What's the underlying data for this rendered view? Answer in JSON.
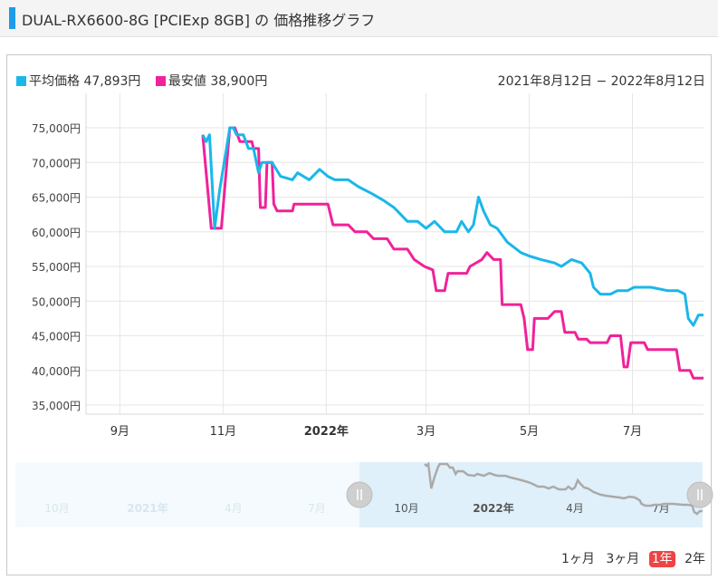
{
  "header": {
    "title": "DUAL-RX6600-8G [PCIExp 8GB] の 価格推移グラフ"
  },
  "legend": {
    "avg_label": "平均価格 47,893円",
    "min_label": "最安値 38,900円"
  },
  "date_range": "2021年8月12日 − 2022年8月12日",
  "range_buttons": [
    "1ヶ月",
    "3ヶ月",
    "1年",
    "2年"
  ],
  "active_range": "1年",
  "colors": {
    "avg": "#1ab7ea",
    "min": "#f0229a",
    "navigator": "#aaaaaa",
    "nav_bg": "#dff0fa"
  },
  "chart_data": {
    "type": "line",
    "ylim": [
      35000,
      75000
    ],
    "y_ticks": [
      35000,
      40000,
      45000,
      50000,
      55000,
      60000,
      65000,
      70000,
      75000
    ],
    "y_tick_labels": [
      "35,000円",
      "40,000円",
      "45,000円",
      "50,000円",
      "55,000円",
      "60,000円",
      "65,000円",
      "70,000円",
      "75,000円"
    ],
    "x_range": [
      "2021-08-12",
      "2022-08-12"
    ],
    "x_ticks": [
      {
        "date": "2021-09-01",
        "label": "9月"
      },
      {
        "date": "2021-11-01",
        "label": "11月"
      },
      {
        "date": "2022-01-01",
        "label": "2022年"
      },
      {
        "date": "2022-03-01",
        "label": "3月"
      },
      {
        "date": "2022-05-01",
        "label": "5月"
      },
      {
        "date": "2022-07-01",
        "label": "7月"
      }
    ],
    "series": [
      {
        "name": "平均価格",
        "key": "avg",
        "points": [
          [
            "2021-10-20",
            74000
          ],
          [
            "2021-10-22",
            73000
          ],
          [
            "2021-10-24",
            74000
          ],
          [
            "2021-10-27",
            60500
          ],
          [
            "2021-10-30",
            66000
          ],
          [
            "2021-11-03",
            72000
          ],
          [
            "2021-11-05",
            75000
          ],
          [
            "2021-11-07",
            75000
          ],
          [
            "2021-11-09",
            74000
          ],
          [
            "2021-11-13",
            74000
          ],
          [
            "2021-11-16",
            72000
          ],
          [
            "2021-11-19",
            72000
          ],
          [
            "2021-11-22",
            68500
          ],
          [
            "2021-11-24",
            70000
          ],
          [
            "2021-11-30",
            70000
          ],
          [
            "2021-12-05",
            68000
          ],
          [
            "2021-12-12",
            67500
          ],
          [
            "2021-12-15",
            68500
          ],
          [
            "2021-12-22",
            67500
          ],
          [
            "2021-12-28",
            69000
          ],
          [
            "2022-01-02",
            68000
          ],
          [
            "2022-01-06",
            67500
          ],
          [
            "2022-01-14",
            67500
          ],
          [
            "2022-01-20",
            66500
          ],
          [
            "2022-01-28",
            65500
          ],
          [
            "2022-02-04",
            64500
          ],
          [
            "2022-02-10",
            63500
          ],
          [
            "2022-02-14",
            62500
          ],
          [
            "2022-02-18",
            61500
          ],
          [
            "2022-02-24",
            61500
          ],
          [
            "2022-03-01",
            60500
          ],
          [
            "2022-03-06",
            61500
          ],
          [
            "2022-03-12",
            60000
          ],
          [
            "2022-03-19",
            60000
          ],
          [
            "2022-03-22",
            61500
          ],
          [
            "2022-03-26",
            60000
          ],
          [
            "2022-03-29",
            61000
          ],
          [
            "2022-04-01",
            65000
          ],
          [
            "2022-04-04",
            63000
          ],
          [
            "2022-04-08",
            61000
          ],
          [
            "2022-04-12",
            60500
          ],
          [
            "2022-04-18",
            58500
          ],
          [
            "2022-04-26",
            57000
          ],
          [
            "2022-05-01",
            56500
          ],
          [
            "2022-05-08",
            56000
          ],
          [
            "2022-05-16",
            55500
          ],
          [
            "2022-05-20",
            55000
          ],
          [
            "2022-05-26",
            56000
          ],
          [
            "2022-06-01",
            55500
          ],
          [
            "2022-06-06",
            54000
          ],
          [
            "2022-06-08",
            52000
          ],
          [
            "2022-06-12",
            51000
          ],
          [
            "2022-06-18",
            51000
          ],
          [
            "2022-06-22",
            51500
          ],
          [
            "2022-06-28",
            51500
          ],
          [
            "2022-07-02",
            52000
          ],
          [
            "2022-07-12",
            52000
          ],
          [
            "2022-07-22",
            51500
          ],
          [
            "2022-07-28",
            51500
          ],
          [
            "2022-08-01",
            51000
          ],
          [
            "2022-08-03",
            47500
          ],
          [
            "2022-08-06",
            46500
          ],
          [
            "2022-08-09",
            48000
          ],
          [
            "2022-08-12",
            48000
          ]
        ]
      },
      {
        "name": "最安値",
        "key": "min",
        "points": [
          [
            "2021-10-20",
            74000
          ],
          [
            "2021-10-25",
            60500
          ],
          [
            "2021-10-28",
            60500
          ],
          [
            "2021-10-31",
            60500
          ],
          [
            "2021-11-05",
            75000
          ],
          [
            "2021-11-08",
            75000
          ],
          [
            "2021-11-11",
            73000
          ],
          [
            "2021-11-18",
            73000
          ],
          [
            "2021-11-19",
            72000
          ],
          [
            "2021-11-22",
            72000
          ],
          [
            "2021-11-23",
            63500
          ],
          [
            "2021-11-26",
            63500
          ],
          [
            "2021-11-27",
            70000
          ],
          [
            "2021-11-30",
            70000
          ],
          [
            "2021-12-01",
            64000
          ],
          [
            "2021-12-03",
            63000
          ],
          [
            "2021-12-12",
            63000
          ],
          [
            "2021-12-13",
            64000
          ],
          [
            "2022-01-02",
            64000
          ],
          [
            "2022-01-05",
            61000
          ],
          [
            "2022-01-14",
            61000
          ],
          [
            "2022-01-18",
            60000
          ],
          [
            "2022-01-25",
            60000
          ],
          [
            "2022-01-29",
            59000
          ],
          [
            "2022-02-06",
            59000
          ],
          [
            "2022-02-10",
            57500
          ],
          [
            "2022-02-18",
            57500
          ],
          [
            "2022-02-22",
            56000
          ],
          [
            "2022-02-28",
            55000
          ],
          [
            "2022-03-05",
            54500
          ],
          [
            "2022-03-06",
            53000
          ],
          [
            "2022-03-07",
            51500
          ],
          [
            "2022-03-12",
            51500
          ],
          [
            "2022-03-14",
            54000
          ],
          [
            "2022-03-25",
            54000
          ],
          [
            "2022-03-27",
            55000
          ],
          [
            "2022-04-03",
            56000
          ],
          [
            "2022-04-06",
            57000
          ],
          [
            "2022-04-10",
            56000
          ],
          [
            "2022-04-14",
            56000
          ],
          [
            "2022-04-15",
            49500
          ],
          [
            "2022-04-26",
            49500
          ],
          [
            "2022-04-28",
            47500
          ],
          [
            "2022-04-30",
            43000
          ],
          [
            "2022-05-03",
            43000
          ],
          [
            "2022-05-04",
            47500
          ],
          [
            "2022-05-12",
            47500
          ],
          [
            "2022-05-16",
            48500
          ],
          [
            "2022-05-20",
            48500
          ],
          [
            "2022-05-22",
            45500
          ],
          [
            "2022-05-28",
            45500
          ],
          [
            "2022-05-30",
            44500
          ],
          [
            "2022-06-04",
            44500
          ],
          [
            "2022-06-06",
            44000
          ],
          [
            "2022-06-16",
            44000
          ],
          [
            "2022-06-18",
            45000
          ],
          [
            "2022-06-24",
            45000
          ],
          [
            "2022-06-26",
            40500
          ],
          [
            "2022-06-28",
            40500
          ],
          [
            "2022-06-30",
            44000
          ],
          [
            "2022-07-08",
            44000
          ],
          [
            "2022-07-10",
            43000
          ],
          [
            "2022-07-27",
            43000
          ],
          [
            "2022-07-29",
            40000
          ],
          [
            "2022-08-04",
            40000
          ],
          [
            "2022-08-06",
            38900
          ],
          [
            "2022-08-12",
            38900
          ]
        ]
      }
    ]
  },
  "navigator": {
    "labels_left": [
      "10月",
      "2021年",
      "4月",
      "7月"
    ],
    "labels_right": [
      "10月",
      "2022年",
      "4月",
      "7月"
    ]
  }
}
